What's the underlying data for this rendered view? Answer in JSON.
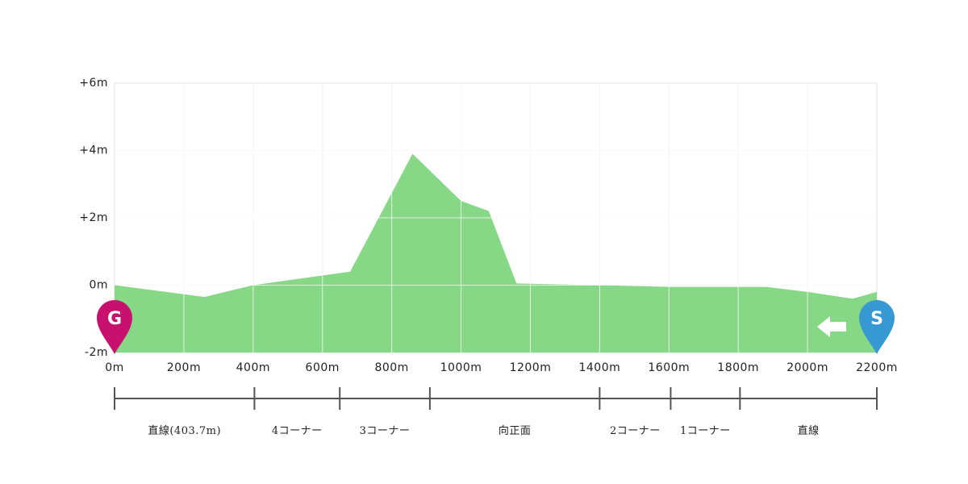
{
  "chart_data": {
    "type": "area",
    "x_unit": "m",
    "x": [
      0,
      260,
      400,
      680,
      860,
      1000,
      1080,
      1160,
      1400,
      1600,
      1880,
      2000,
      2130,
      2200
    ],
    "y": [
      0.0,
      -0.35,
      0.0,
      0.4,
      3.9,
      2.5,
      2.2,
      0.05,
      0.0,
      -0.05,
      -0.05,
      -0.2,
      -0.4,
      -0.2
    ],
    "xlim": [
      0,
      2200
    ],
    "ylim": [
      -2,
      6
    ],
    "x_ticks": [
      0,
      200,
      400,
      600,
      800,
      1000,
      1200,
      1400,
      1600,
      1800,
      2000,
      2200
    ],
    "x_tick_labels": [
      "0m",
      "200m",
      "400m",
      "600m",
      "800m",
      "1000m",
      "1200m",
      "1400m",
      "1600m",
      "1800m",
      "2000m",
      "2200m"
    ],
    "y_ticks": [
      -2,
      0,
      2,
      4,
      6
    ],
    "y_tick_labels": [
      "-2m",
      "0m",
      "+2m",
      "+4m",
      "+6m"
    ],
    "grid": true,
    "fill_color": "#86d886",
    "sections": [
      {
        "start": 0,
        "end": 403.7,
        "label": "直線(403.7m)"
      },
      {
        "start": 403.7,
        "end": 650,
        "label": "4コーナー"
      },
      {
        "start": 650,
        "end": 910,
        "label": "3コーナー"
      },
      {
        "start": 910,
        "end": 1400,
        "label": "向正面"
      },
      {
        "start": 1400,
        "end": 1605,
        "label": "2コーナー"
      },
      {
        "start": 1605,
        "end": 1805,
        "label": "1コーナー"
      },
      {
        "start": 1805,
        "end": 2200,
        "label": "直線"
      }
    ],
    "markers": {
      "goal": {
        "label": "G",
        "x": 0,
        "color": "#c8106e"
      },
      "start": {
        "label": "S",
        "x": 2200,
        "color": "#3799d2"
      },
      "direction_icon": "arrow-left-icon"
    }
  }
}
